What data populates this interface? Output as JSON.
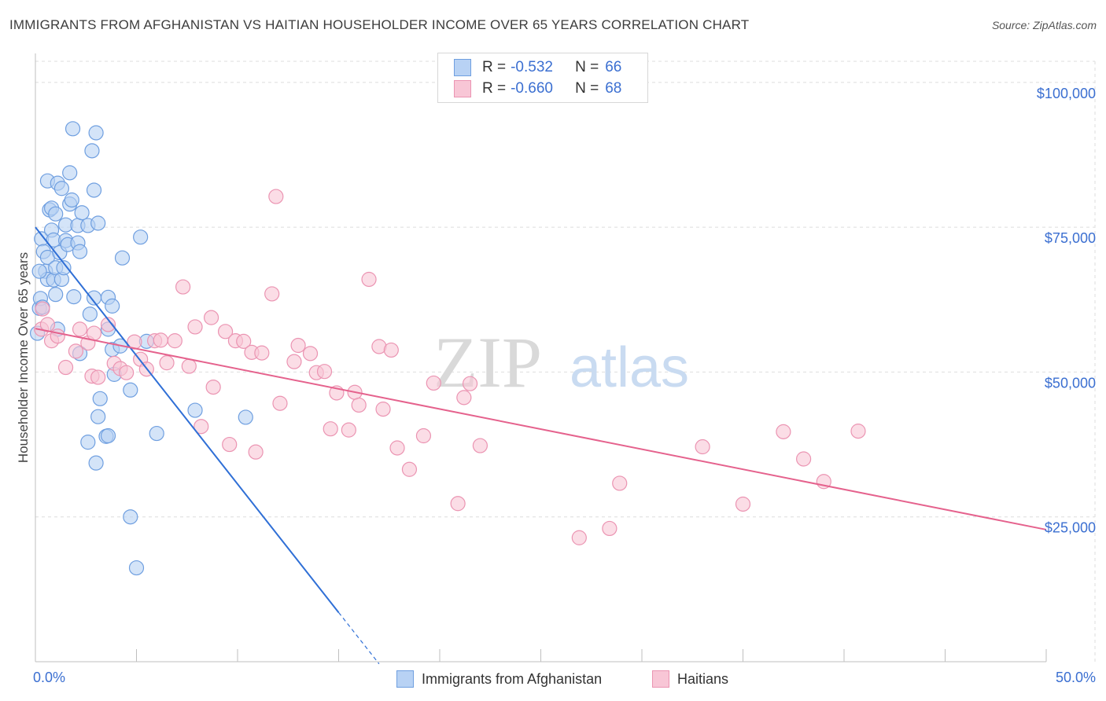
{
  "title": "IMMIGRANTS FROM AFGHANISTAN VS HAITIAN HOUSEHOLDER INCOME OVER 65 YEARS CORRELATION CHART",
  "source": "Source: ZipAtlas.com",
  "colors": {
    "blue_fill": "#b8d2f4",
    "blue_stroke": "#6f9fe0",
    "blue_line": "#2f6fd6",
    "pink_fill": "#f8c6d6",
    "pink_stroke": "#eb94b2",
    "pink_line": "#e5628d",
    "tick_label": "#3b6fd1",
    "grid": "#dedede"
  },
  "legend_stats": [
    {
      "r_label": "R =",
      "r_value": "-0.532",
      "n_label": "N =",
      "n_value": "66"
    },
    {
      "r_label": "R =",
      "r_value": "-0.660",
      "n_label": "N =",
      "n_value": "68"
    }
  ],
  "watermark": {
    "zip": "ZIP",
    "atlas": "atlas"
  },
  "chart_data": {
    "type": "scatter",
    "title": "IMMIGRANTS FROM AFGHANISTAN VS HAITIAN HOUSEHOLDER INCOME OVER 65 YEARS CORRELATION CHART",
    "xlabel": "",
    "ylabel": "Householder Income Over 65 years",
    "xlim": [
      0,
      50
    ],
    "ylim": [
      0,
      105000
    ],
    "x_tick_labels": [
      "0.0%",
      "50.0%"
    ],
    "y_ticks": [
      25000,
      50000,
      75000,
      100000
    ],
    "y_tick_labels": [
      "$25,000",
      "$50,000",
      "$75,000",
      "$100,000"
    ],
    "grid": true,
    "legend_position": "bottom-center",
    "series": [
      {
        "name": "Immigrants from Afghanistan",
        "color": "#6f9fe0",
        "trend": {
          "x0": 0.0,
          "y0": 75000,
          "x1": 15.0,
          "y1": 8500,
          "dash_to_x": 17.0
        },
        "points": [
          [
            0.1,
            56700
          ],
          [
            0.2,
            61000
          ],
          [
            0.25,
            62700
          ],
          [
            0.3,
            73000
          ],
          [
            0.35,
            61200
          ],
          [
            0.4,
            70800
          ],
          [
            0.5,
            67400
          ],
          [
            0.6,
            66000
          ],
          [
            0.6,
            69800
          ],
          [
            0.7,
            78000
          ],
          [
            0.6,
            83000
          ],
          [
            0.8,
            78300
          ],
          [
            0.8,
            74500
          ],
          [
            0.9,
            72800
          ],
          [
            0.9,
            65900
          ],
          [
            1.0,
            68000
          ],
          [
            1.0,
            77300
          ],
          [
            1.1,
            82600
          ],
          [
            1.1,
            57400
          ],
          [
            1.2,
            70600
          ],
          [
            1.3,
            81700
          ],
          [
            1.3,
            66000
          ],
          [
            1.4,
            68000
          ],
          [
            1.5,
            75400
          ],
          [
            1.5,
            72700
          ],
          [
            1.6,
            72000
          ],
          [
            1.7,
            84400
          ],
          [
            1.7,
            79000
          ],
          [
            1.8,
            79700
          ],
          [
            1.9,
            63000
          ],
          [
            1.85,
            92000
          ],
          [
            2.1,
            75300
          ],
          [
            2.1,
            72300
          ],
          [
            2.2,
            70800
          ],
          [
            2.3,
            77500
          ],
          [
            2.2,
            53200
          ],
          [
            2.6,
            75300
          ],
          [
            2.7,
            60000
          ],
          [
            2.8,
            88200
          ],
          [
            2.9,
            62800
          ],
          [
            2.9,
            81400
          ],
          [
            3.0,
            91300
          ],
          [
            3.1,
            75700
          ],
          [
            3.2,
            45400
          ],
          [
            3.1,
            42300
          ],
          [
            2.6,
            37900
          ],
          [
            3.0,
            34300
          ],
          [
            3.5,
            38900
          ],
          [
            3.6,
            39000
          ],
          [
            3.6,
            62900
          ],
          [
            3.6,
            57400
          ],
          [
            3.8,
            61400
          ],
          [
            3.9,
            49600
          ],
          [
            3.8,
            53900
          ],
          [
            4.2,
            54500
          ],
          [
            4.3,
            69700
          ],
          [
            4.7,
            46900
          ],
          [
            4.7,
            25000
          ],
          [
            5.0,
            16200
          ],
          [
            5.2,
            73300
          ],
          [
            5.5,
            55300
          ],
          [
            6.0,
            39400
          ],
          [
            7.9,
            43400
          ],
          [
            10.4,
            42200
          ],
          [
            0.2,
            67400
          ],
          [
            1.0,
            63400
          ]
        ]
      },
      {
        "name": "Haitians",
        "color": "#eb94b2",
        "trend": {
          "x0": 0.0,
          "y0": 57500,
          "x1": 50.0,
          "y1": 22800
        },
        "points": [
          [
            0.3,
            57400
          ],
          [
            0.35,
            60900
          ],
          [
            0.6,
            58200
          ],
          [
            0.8,
            55400
          ],
          [
            1.1,
            56200
          ],
          [
            1.5,
            50800
          ],
          [
            2.0,
            53600
          ],
          [
            2.2,
            57400
          ],
          [
            2.6,
            55000
          ],
          [
            2.8,
            49300
          ],
          [
            2.9,
            56700
          ],
          [
            3.1,
            49100
          ],
          [
            3.6,
            58200
          ],
          [
            3.9,
            51500
          ],
          [
            4.2,
            50600
          ],
          [
            4.5,
            49900
          ],
          [
            4.9,
            55200
          ],
          [
            5.2,
            52200
          ],
          [
            5.5,
            50500
          ],
          [
            5.9,
            55400
          ],
          [
            6.2,
            55500
          ],
          [
            6.5,
            51600
          ],
          [
            6.9,
            55400
          ],
          [
            7.3,
            64700
          ],
          [
            7.6,
            51000
          ],
          [
            7.9,
            57800
          ],
          [
            8.2,
            40600
          ],
          [
            8.7,
            59400
          ],
          [
            8.8,
            47400
          ],
          [
            9.4,
            57000
          ],
          [
            9.6,
            37500
          ],
          [
            9.9,
            55400
          ],
          [
            10.3,
            55300
          ],
          [
            10.7,
            53400
          ],
          [
            10.9,
            36200
          ],
          [
            11.2,
            53300
          ],
          [
            11.7,
            63500
          ],
          [
            11.9,
            80300
          ],
          [
            12.1,
            44600
          ],
          [
            12.8,
            51800
          ],
          [
            13.0,
            54600
          ],
          [
            13.6,
            53200
          ],
          [
            13.9,
            49900
          ],
          [
            14.3,
            50100
          ],
          [
            14.6,
            40200
          ],
          [
            14.9,
            46400
          ],
          [
            15.5,
            40000
          ],
          [
            15.8,
            46500
          ],
          [
            16.0,
            44300
          ],
          [
            16.5,
            66000
          ],
          [
            17.2,
            43600
          ],
          [
            17.0,
            54400
          ],
          [
            17.6,
            53800
          ],
          [
            17.9,
            36900
          ],
          [
            18.5,
            33200
          ],
          [
            19.2,
            39000
          ],
          [
            19.7,
            48100
          ],
          [
            20.9,
            27300
          ],
          [
            21.2,
            45600
          ],
          [
            21.5,
            48000
          ],
          [
            22.0,
            37300
          ],
          [
            26.9,
            21400
          ],
          [
            28.4,
            23000
          ],
          [
            28.9,
            30800
          ],
          [
            33.0,
            37100
          ],
          [
            35.0,
            27200
          ],
          [
            37.0,
            39700
          ],
          [
            38.0,
            35000
          ]
        ]
      }
    ],
    "extra_points_note": "",
    "extra_points": [
      {
        "series": 1,
        "x": 39.0,
        "y": 31100
      },
      {
        "series": 1,
        "x": 40.7,
        "y": 39800
      }
    ]
  }
}
